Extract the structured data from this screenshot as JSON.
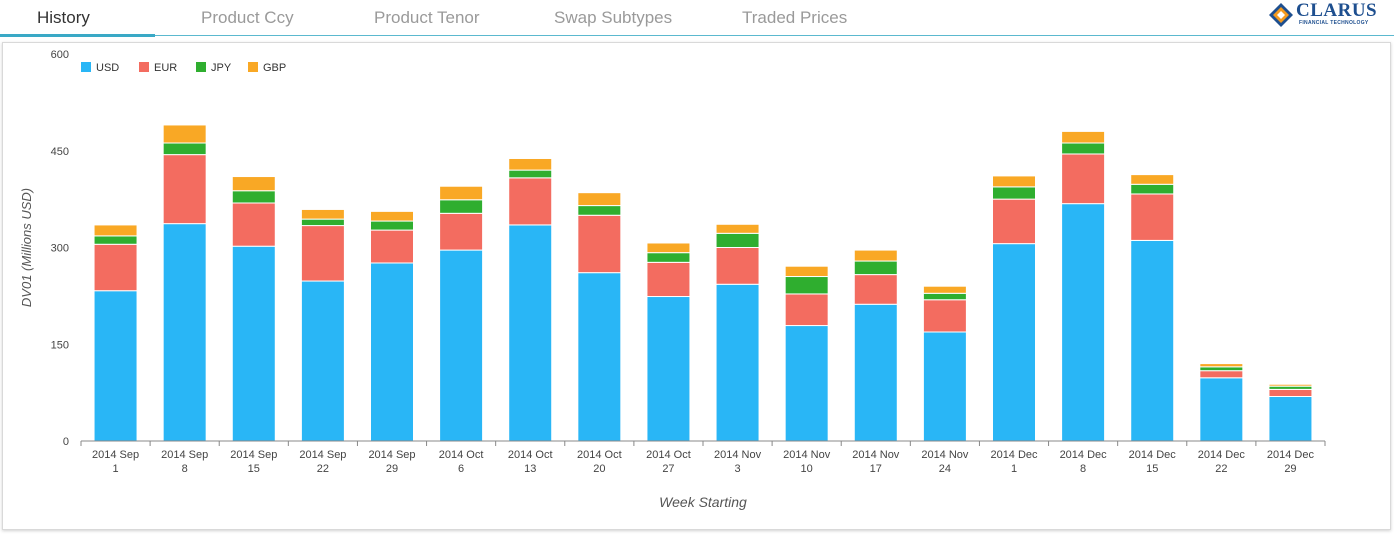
{
  "tabs": [
    {
      "label": "History",
      "active": true
    },
    {
      "label": "Product Ccy",
      "active": false
    },
    {
      "label": "Product Tenor",
      "active": false
    },
    {
      "label": "Swap Subtypes",
      "active": false
    },
    {
      "label": "Traded Prices",
      "active": false
    }
  ],
  "logo": {
    "name": "CLARUS",
    "tagline": "FINANCIAL TECHNOLOGY",
    "colors": {
      "orange": "#f39a1f",
      "blue": "#1e4f8f"
    }
  },
  "chart_data": {
    "type": "bar",
    "stacked": true,
    "xlabel": "Week Starting",
    "ylabel": "DV01 (Millions USD)",
    "ylim": [
      0,
      600
    ],
    "yticks": [
      0,
      150,
      300,
      450,
      600
    ],
    "grid": false,
    "legend_position": "top-left",
    "categories": [
      [
        "2014 Sep",
        "1"
      ],
      [
        "2014 Sep",
        "8"
      ],
      [
        "2014 Sep",
        "15"
      ],
      [
        "2014 Sep",
        "22"
      ],
      [
        "2014 Sep",
        "29"
      ],
      [
        "2014 Oct",
        "6"
      ],
      [
        "2014 Oct",
        "13"
      ],
      [
        "2014 Oct",
        "20"
      ],
      [
        "2014 Oct",
        "27"
      ],
      [
        "2014 Nov",
        "3"
      ],
      [
        "2014 Nov",
        "10"
      ],
      [
        "2014 Nov",
        "17"
      ],
      [
        "2014 Nov",
        "24"
      ],
      [
        "2014 Dec",
        "1"
      ],
      [
        "2014 Dec",
        "8"
      ],
      [
        "2014 Dec",
        "15"
      ],
      [
        "2014 Dec",
        "22"
      ],
      [
        "2014 Dec",
        "29"
      ]
    ],
    "series": [
      {
        "name": "USD",
        "color": "#29b6f6",
        "values": [
          233,
          337,
          302,
          248,
          276,
          296,
          335,
          261,
          224,
          243,
          179,
          212,
          169,
          306,
          368,
          311,
          98,
          69
        ]
      },
      {
        "name": "EUR",
        "color": "#f36c60",
        "values": [
          72,
          107,
          67,
          86,
          51,
          57,
          73,
          89,
          53,
          57,
          49,
          46,
          50,
          69,
          77,
          72,
          11,
          11
        ]
      },
      {
        "name": "JPY",
        "color": "#2fae2f",
        "values": [
          13,
          18,
          19,
          10,
          14,
          21,
          12,
          15,
          15,
          22,
          27,
          21,
          10,
          19,
          17,
          15,
          6,
          5
        ]
      },
      {
        "name": "GBP",
        "color": "#f9a825",
        "values": [
          17,
          28,
          22,
          15,
          15,
          21,
          18,
          20,
          15,
          14,
          16,
          17,
          11,
          17,
          18,
          15,
          5,
          3
        ]
      }
    ]
  }
}
